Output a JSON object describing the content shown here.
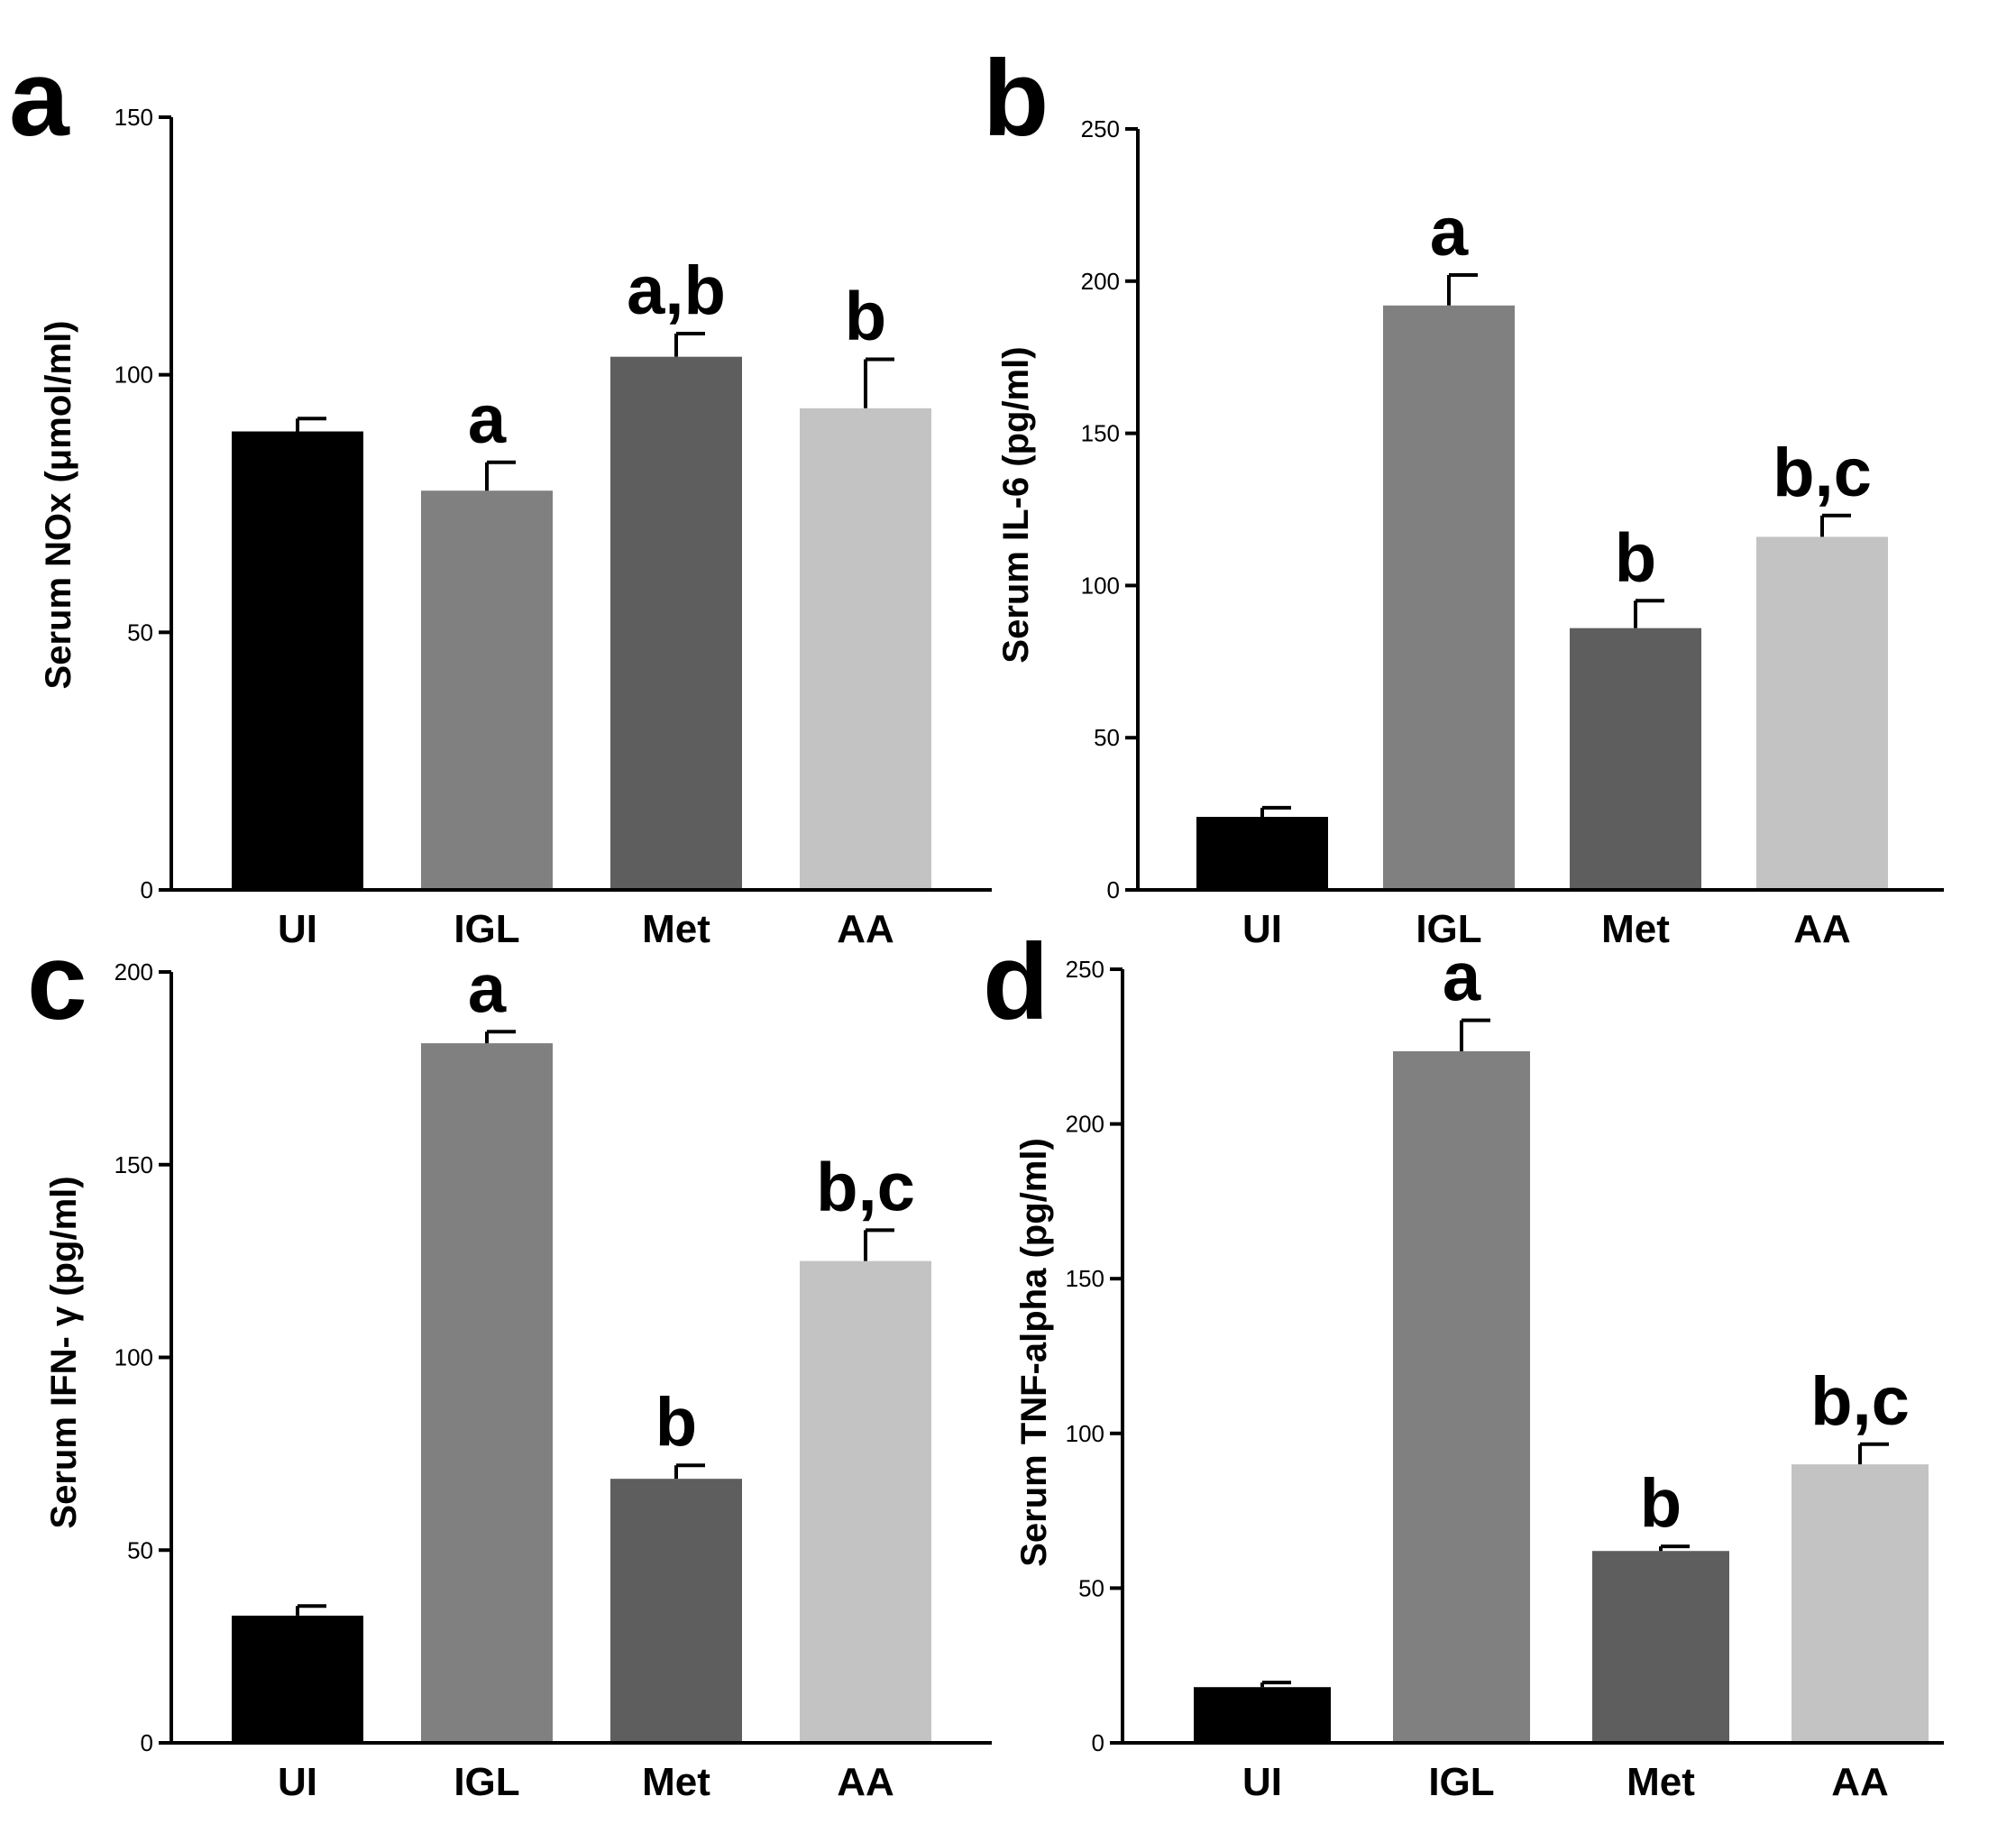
{
  "chart_data": [
    {
      "panel": "a",
      "type": "bar",
      "ylabel": "Serum NOx (μmol/ml)",
      "categories": [
        "UI",
        "IGL",
        "Met",
        "AA"
      ],
      "values": [
        89,
        77.5,
        103.5,
        93.5
      ],
      "errors": [
        2.5,
        5.5,
        4.5,
        9.5
      ],
      "significance": [
        "",
        "a",
        "a,b",
        "b"
      ],
      "colors": [
        "#000000",
        "#808080",
        "#5e5e5e",
        "#c3c3c3"
      ],
      "ylim": [
        0,
        150
      ],
      "yticks": [
        0,
        50,
        100,
        150
      ]
    },
    {
      "panel": "b",
      "type": "bar",
      "ylabel": "Serum IL-6 (pg/ml)",
      "categories": [
        "UI",
        "IGL",
        "Met",
        "AA"
      ],
      "values": [
        24,
        192,
        86,
        116
      ],
      "errors": [
        3,
        10,
        9,
        7
      ],
      "significance": [
        "",
        "a",
        "b",
        "b,c"
      ],
      "colors": [
        "#000000",
        "#808080",
        "#5e5e5e",
        "#c3c3c3"
      ],
      "ylim": [
        0,
        250
      ],
      "yticks": [
        0,
        50,
        100,
        150,
        200,
        250
      ]
    },
    {
      "panel": "c",
      "type": "bar",
      "ylabel": "Serum IFN- γ (pg/ml)",
      "categories": [
        "UI",
        "IGL",
        "Met",
        "AA"
      ],
      "values": [
        33,
        181.5,
        68.5,
        125
      ],
      "errors": [
        2.5,
        3,
        3.5,
        8
      ],
      "significance": [
        "",
        "a",
        "b",
        "b,c"
      ],
      "colors": [
        "#000000",
        "#808080",
        "#5e5e5e",
        "#c3c3c3"
      ],
      "ylim": [
        0,
        200
      ],
      "yticks": [
        0,
        50,
        100,
        150,
        200
      ]
    },
    {
      "panel": "d",
      "type": "bar",
      "ylabel": "Serum TNF-alpha (pg/ml)",
      "categories": [
        "UI",
        "IGL",
        "Met",
        "AA"
      ],
      "values": [
        18,
        223.5,
        62,
        90
      ],
      "errors": [
        1.5,
        10,
        1.5,
        6.5
      ],
      "significance": [
        "",
        "a",
        "b",
        "b,c"
      ],
      "colors": [
        "#000000",
        "#808080",
        "#5e5e5e",
        "#c3c3c3"
      ],
      "ylim": [
        0,
        250
      ],
      "yticks": [
        0,
        50,
        100,
        150,
        200,
        250
      ]
    }
  ]
}
